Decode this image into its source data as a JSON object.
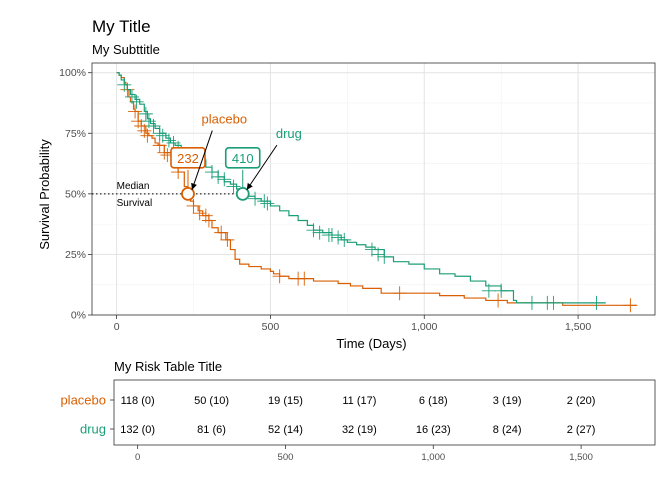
{
  "colors": {
    "placebo": "#d95f02",
    "drug": "#1b9e77",
    "grid_major": "#e3e3e3",
    "grid_minor": "#f2f2f2",
    "panel_border": "#333333",
    "text": "#000000",
    "tick_text": "#4d4d4d"
  },
  "chart_data": {
    "type": "line",
    "subtype": "kaplan-meier survival curve",
    "title": "My Title",
    "subtitle": "My Subttitle",
    "xlabel": "Time (Days)",
    "ylabel": "Survival Probability",
    "xlim": [
      -80,
      1750
    ],
    "ylim": [
      0,
      1.04
    ],
    "x_ticks": [
      0,
      500,
      1000,
      1500
    ],
    "x_tick_labels": [
      "0",
      "500",
      "1,000",
      "1,500"
    ],
    "y_ticks": [
      0,
      0.25,
      0.5,
      0.75,
      1
    ],
    "y_tick_labels": [
      "0%",
      "25%",
      "50%",
      "75%",
      "100%"
    ],
    "grid": true,
    "legend": "none (series labelled directly on plot)",
    "series": [
      {
        "name": "placebo",
        "steps": [
          [
            0,
            1
          ],
          [
            8,
            0.99
          ],
          [
            15,
            0.98
          ],
          [
            25,
            0.96
          ],
          [
            30,
            0.95
          ],
          [
            35,
            0.93
          ],
          [
            40,
            0.9
          ],
          [
            45,
            0.88
          ],
          [
            55,
            0.85
          ],
          [
            60,
            0.84
          ],
          [
            70,
            0.8
          ],
          [
            80,
            0.78
          ],
          [
            95,
            0.75
          ],
          [
            105,
            0.74
          ],
          [
            115,
            0.73
          ],
          [
            125,
            0.71
          ],
          [
            135,
            0.7
          ],
          [
            155,
            0.67
          ],
          [
            180,
            0.64
          ],
          [
            200,
            0.59
          ],
          [
            220,
            0.53
          ],
          [
            232,
            0.5
          ],
          [
            240,
            0.47
          ],
          [
            250,
            0.45
          ],
          [
            265,
            0.43
          ],
          [
            280,
            0.41
          ],
          [
            300,
            0.39
          ],
          [
            310,
            0.36
          ],
          [
            330,
            0.34
          ],
          [
            355,
            0.31
          ],
          [
            370,
            0.27
          ],
          [
            385,
            0.23
          ],
          [
            400,
            0.21
          ],
          [
            430,
            0.2
          ],
          [
            470,
            0.19
          ],
          [
            500,
            0.18
          ],
          [
            510,
            0.17
          ],
          [
            530,
            0.16
          ],
          [
            560,
            0.15
          ],
          [
            640,
            0.14
          ],
          [
            720,
            0.13
          ],
          [
            760,
            0.12
          ],
          [
            800,
            0.11
          ],
          [
            860,
            0.09
          ],
          [
            1050,
            0.08
          ],
          [
            1130,
            0.07
          ],
          [
            1200,
            0.06
          ],
          [
            1270,
            0.05
          ],
          [
            1450,
            0.04
          ]
        ],
        "end": 1690,
        "censored": [
          [
            35,
            0.93
          ],
          [
            60,
            0.84
          ],
          [
            70,
            0.8
          ],
          [
            80,
            0.78
          ],
          [
            90,
            0.76
          ],
          [
            100,
            0.74
          ],
          [
            140,
            0.7
          ],
          [
            155,
            0.67
          ],
          [
            165,
            0.66
          ],
          [
            200,
            0.59
          ],
          [
            250,
            0.45
          ],
          [
            270,
            0.42
          ],
          [
            290,
            0.41
          ],
          [
            300,
            0.39
          ],
          [
            340,
            0.34
          ],
          [
            360,
            0.31
          ],
          [
            530,
            0.16
          ],
          [
            590,
            0.15
          ],
          [
            610,
            0.15
          ],
          [
            920,
            0.09
          ],
          [
            1240,
            0.06
          ],
          [
            1420,
            0.05
          ],
          [
            1670,
            0.04
          ]
        ],
        "median": 232,
        "median_label": "232",
        "label": "placebo",
        "label_at": [
          350,
          0.79
        ]
      },
      {
        "name": "drug",
        "steps": [
          [
            0,
            1
          ],
          [
            8,
            0.99
          ],
          [
            15,
            0.97
          ],
          [
            25,
            0.95
          ],
          [
            35,
            0.93
          ],
          [
            45,
            0.91
          ],
          [
            60,
            0.89
          ],
          [
            75,
            0.87
          ],
          [
            90,
            0.84
          ],
          [
            100,
            0.81
          ],
          [
            110,
            0.79
          ],
          [
            125,
            0.77
          ],
          [
            140,
            0.75
          ],
          [
            160,
            0.73
          ],
          [
            175,
            0.71
          ],
          [
            190,
            0.7
          ],
          [
            210,
            0.68
          ],
          [
            230,
            0.67
          ],
          [
            250,
            0.65
          ],
          [
            270,
            0.64
          ],
          [
            290,
            0.61
          ],
          [
            310,
            0.59
          ],
          [
            330,
            0.57
          ],
          [
            350,
            0.55
          ],
          [
            370,
            0.54
          ],
          [
            390,
            0.52
          ],
          [
            410,
            0.5
          ],
          [
            430,
            0.49
          ],
          [
            450,
            0.48
          ],
          [
            470,
            0.47
          ],
          [
            500,
            0.45
          ],
          [
            530,
            0.43
          ],
          [
            560,
            0.41
          ],
          [
            590,
            0.39
          ],
          [
            620,
            0.37
          ],
          [
            640,
            0.35
          ],
          [
            670,
            0.34
          ],
          [
            700,
            0.33
          ],
          [
            730,
            0.31
          ],
          [
            750,
            0.3
          ],
          [
            780,
            0.29
          ],
          [
            810,
            0.28
          ],
          [
            840,
            0.27
          ],
          [
            870,
            0.24
          ],
          [
            900,
            0.22
          ],
          [
            950,
            0.21
          ],
          [
            1000,
            0.19
          ],
          [
            1050,
            0.17
          ],
          [
            1100,
            0.16
          ],
          [
            1150,
            0.14
          ],
          [
            1200,
            0.12
          ],
          [
            1250,
            0.1
          ],
          [
            1290,
            0.06
          ],
          [
            1300,
            0.05
          ]
        ],
        "end": 1590,
        "censored": [
          [
            25,
            0.95
          ],
          [
            50,
            0.9
          ],
          [
            65,
            0.88
          ],
          [
            95,
            0.83
          ],
          [
            105,
            0.8
          ],
          [
            120,
            0.78
          ],
          [
            140,
            0.75
          ],
          [
            150,
            0.74
          ],
          [
            170,
            0.72
          ],
          [
            185,
            0.71
          ],
          [
            200,
            0.69
          ],
          [
            310,
            0.59
          ],
          [
            330,
            0.57
          ],
          [
            350,
            0.56
          ],
          [
            380,
            0.53
          ],
          [
            450,
            0.48
          ],
          [
            480,
            0.47
          ],
          [
            490,
            0.46
          ],
          [
            640,
            0.35
          ],
          [
            660,
            0.34
          ],
          [
            690,
            0.33
          ],
          [
            700,
            0.33
          ],
          [
            720,
            0.32
          ],
          [
            740,
            0.31
          ],
          [
            830,
            0.27
          ],
          [
            850,
            0.25
          ],
          [
            870,
            0.24
          ],
          [
            1210,
            0.1
          ],
          [
            1250,
            0.1
          ],
          [
            1350,
            0.05
          ],
          [
            1400,
            0.05
          ],
          [
            1560,
            0.05
          ]
        ],
        "median": 410,
        "median_label": "410",
        "label": "drug",
        "label_at": [
          560,
          0.73
        ]
      }
    ],
    "median_annotation": {
      "y": 0.5,
      "line": "dotted",
      "text": [
        "Median",
        "Survival"
      ]
    },
    "risk_table": {
      "title": "My Risk Table Title",
      "time_points": [
        0,
        250,
        500,
        750,
        1000,
        1250,
        1500
      ],
      "axis_ticks": [
        0,
        500,
        1000,
        1500
      ],
      "axis_tick_labels": [
        "0",
        "500",
        "1,000",
        "1,500"
      ],
      "rows": [
        {
          "group": "placebo",
          "cells": [
            "118 (0)",
            "50 (10)",
            "19 (15)",
            "11 (17)",
            "6 (18)",
            "3 (19)",
            "2 (20)"
          ]
        },
        {
          "group": "drug",
          "cells": [
            "132 (0)",
            "81 (6)",
            "52 (14)",
            "32 (19)",
            "16 (23)",
            "8 (24)",
            "2 (27)"
          ]
        }
      ]
    }
  }
}
